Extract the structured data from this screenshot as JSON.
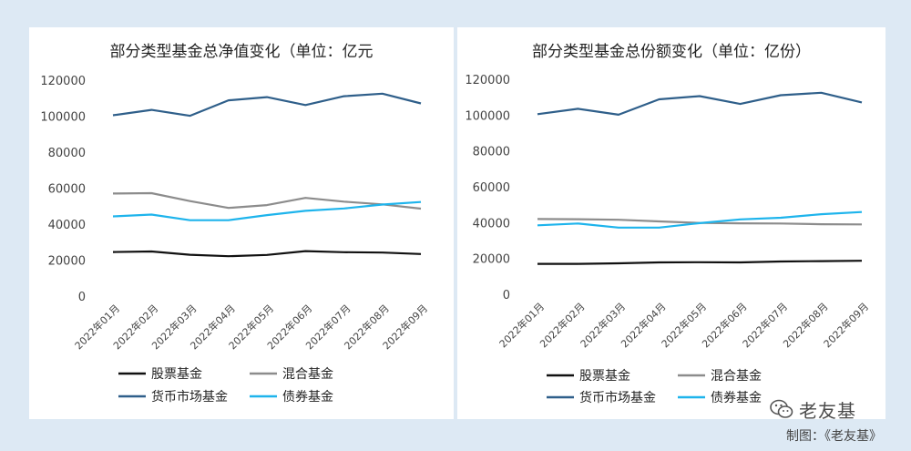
{
  "chart_data": [
    {
      "type": "line",
      "title": "部分类型基金总净值变化（单位：亿元",
      "categories": [
        "2022年01月",
        "2022年02月",
        "2022年03月",
        "2022年04月",
        "2022年05月",
        "2022年06月",
        "2022年07月",
        "2022年08月",
        "2022年09月"
      ],
      "ylim": [
        0,
        120000
      ],
      "yticks": [
        "0",
        "20000",
        "40000",
        "60000",
        "80000",
        "100000",
        "120000"
      ],
      "grid": false,
      "legend_position": "bottom",
      "series": [
        {
          "name": "股票基金",
          "color": "#111111",
          "values": [
            24500,
            24800,
            23000,
            22200,
            22900,
            25000,
            24400,
            24200,
            23400
          ]
        },
        {
          "name": "混合基金",
          "color": "#8c8c8c",
          "values": [
            57000,
            57200,
            52800,
            49000,
            50600,
            54600,
            52500,
            51000,
            48600
          ]
        },
        {
          "name": "货币市场基金",
          "color": "#2f5f8a",
          "values": [
            100500,
            103500,
            100200,
            108800,
            110600,
            106200,
            111100,
            112500,
            107100
          ]
        },
        {
          "name": "债券基金",
          "color": "#1eb4ec",
          "values": [
            44300,
            45300,
            42200,
            42200,
            45000,
            47400,
            48700,
            50900,
            52300
          ]
        }
      ]
    },
    {
      "type": "line",
      "title": "部分类型基金总份额变化（单位：亿份）",
      "categories": [
        "2022年01月",
        "2022年02月",
        "2022年03月",
        "2022年04月",
        "2022年05月",
        "2022年06月",
        "2022年07月",
        "2022年08月",
        "2022年09月"
      ],
      "ylim": [
        0,
        120000
      ],
      "yticks": [
        "0",
        "20000",
        "40000",
        "60000",
        "80000",
        "100000",
        "120000"
      ],
      "grid": false,
      "legend_position": "bottom",
      "series": [
        {
          "name": "股票基金",
          "color": "#111111",
          "values": [
            17000,
            17000,
            17300,
            17800,
            17900,
            17800,
            18300,
            18500,
            18700
          ]
        },
        {
          "name": "混合基金",
          "color": "#8c8c8c",
          "values": [
            42000,
            41900,
            41600,
            40700,
            39800,
            39600,
            39500,
            39100,
            39000
          ]
        },
        {
          "name": "货币市场基金",
          "color": "#2f5f8a",
          "values": [
            100500,
            103500,
            100200,
            108800,
            110600,
            106200,
            111100,
            112500,
            107100
          ]
        },
        {
          "name": "债券基金",
          "color": "#1eb4ec",
          "values": [
            38500,
            39500,
            37200,
            37200,
            39700,
            41800,
            42700,
            44700,
            45900
          ]
        }
      ]
    }
  ],
  "watermark": {
    "text": "老友基",
    "icon": "wechat-icon"
  },
  "credit": "制图：《老友基》"
}
